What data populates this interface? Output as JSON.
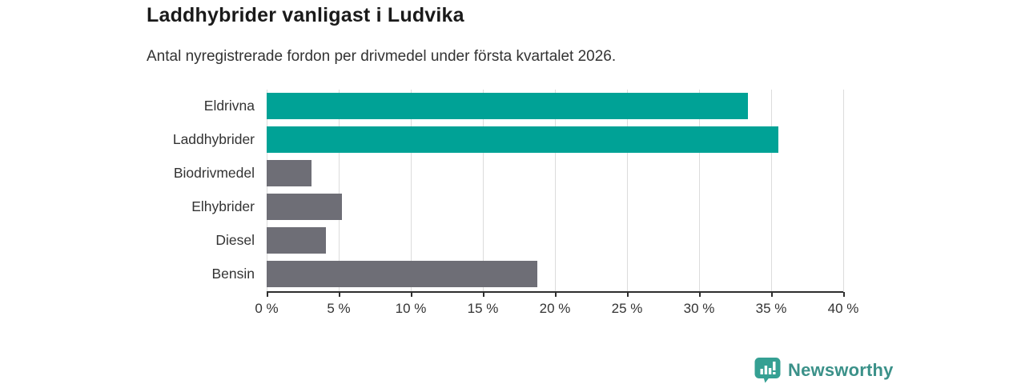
{
  "header": {
    "title": "Laddhybrider vanligast i Ludvika",
    "subtitle": "Antal nyregistrerade fordon per drivmedel under första kvartalet 2026."
  },
  "chart_data": {
    "type": "bar",
    "orientation": "horizontal",
    "title": "Laddhybrider vanligast i Ludvika",
    "subtitle": "Antal nyregistrerade fordon per drivmedel under första kvartalet 2026.",
    "categories": [
      "Eldrivna",
      "Laddhybrider",
      "Biodrivmedel",
      "Elhybrider",
      "Diesel",
      "Bensin"
    ],
    "values": [
      33.4,
      35.5,
      3.1,
      5.2,
      4.1,
      18.8
    ],
    "unit": "%",
    "bar_colors": [
      "#00a296",
      "#00a296",
      "#6e6e76",
      "#6e6e76",
      "#6e6e76",
      "#6e6e76"
    ],
    "xlabel": "",
    "ylabel": "",
    "xlim": [
      0,
      40
    ],
    "x_ticks": [
      0,
      5,
      10,
      15,
      20,
      25,
      30,
      35,
      40
    ],
    "x_tick_labels": [
      "0 %",
      "5 %",
      "10 %",
      "15 %",
      "20 %",
      "25 %",
      "30 %",
      "35 %",
      "40 %"
    ],
    "grid": "vertical",
    "legend": "none"
  },
  "colors": {
    "accent_teal": "#00a296",
    "bar_gray": "#6e6e76",
    "grid_line": "#dcdcdc",
    "axis_line": "#2e2e2e",
    "title_text": "#1a1a1a",
    "body_text": "#333333",
    "logo_icon": "#35a093",
    "logo_text": "#3b9189"
  },
  "footer": {
    "brand": "Newsworthy"
  }
}
